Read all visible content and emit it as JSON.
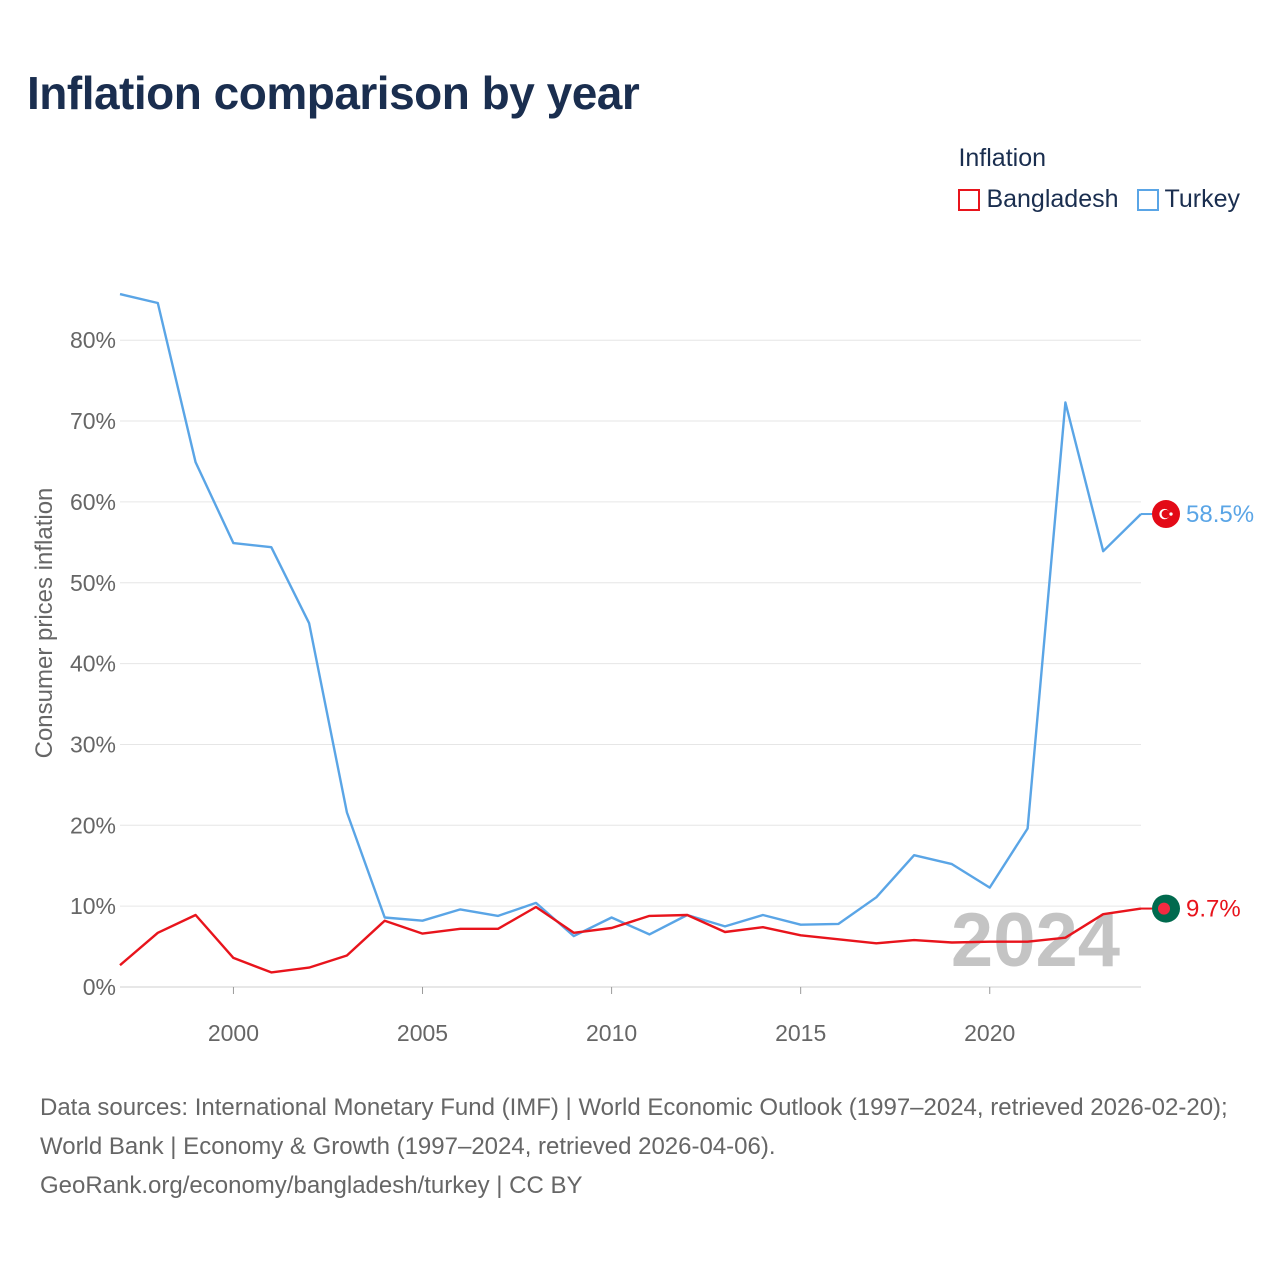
{
  "title": "Inflation comparison by year",
  "legend": {
    "title": "Inflation",
    "items": [
      {
        "label": "Bangladesh",
        "color": "#e8141c"
      },
      {
        "label": "Turkey",
        "color": "#5aa5e6"
      }
    ]
  },
  "chart_data": {
    "type": "line",
    "title": "Inflation comparison by year",
    "xlabel": "",
    "ylabel": "Consumer prices inflation",
    "xlim": [
      1997,
      2024
    ],
    "ylim": [
      0,
      85
    ],
    "x_ticks": [
      2000,
      2005,
      2010,
      2015,
      2020
    ],
    "y_ticks": [
      0,
      10,
      20,
      30,
      40,
      50,
      60,
      70,
      80
    ],
    "y_tick_suffix": "%",
    "grid": true,
    "x": [
      1997,
      1998,
      1999,
      2000,
      2001,
      2002,
      2003,
      2004,
      2005,
      2006,
      2007,
      2008,
      2009,
      2010,
      2011,
      2012,
      2013,
      2014,
      2015,
      2016,
      2017,
      2018,
      2019,
      2020,
      2021,
      2022,
      2023,
      2024
    ],
    "series": [
      {
        "name": "Turkey",
        "color": "#5aa5e6",
        "values": [
          85.7,
          84.6,
          64.9,
          54.9,
          54.4,
          45.0,
          21.6,
          8.6,
          8.2,
          9.6,
          8.8,
          10.4,
          6.3,
          8.6,
          6.5,
          8.9,
          7.5,
          8.9,
          7.7,
          7.8,
          11.1,
          16.3,
          15.2,
          12.3,
          19.6,
          72.3,
          53.9,
          58.5
        ],
        "end_label": "58.5%",
        "flag": "turkey"
      },
      {
        "name": "Bangladesh",
        "color": "#e8141c",
        "values": [
          2.7,
          6.7,
          8.9,
          3.6,
          1.8,
          2.4,
          3.9,
          8.2,
          6.6,
          7.2,
          7.2,
          9.9,
          6.7,
          7.3,
          8.8,
          8.9,
          6.8,
          7.4,
          6.4,
          5.9,
          5.4,
          5.8,
          5.5,
          5.6,
          5.6,
          6.1,
          9.0,
          9.7
        ],
        "end_label": "9.7%",
        "flag": "bangladesh"
      }
    ],
    "year_watermark": "2024"
  },
  "footer": {
    "line1": "Data sources: International Monetary Fund (IMF) | World Economic Outlook (1997–2024, retrieved 2026-02-20); World Bank | Economy & Growth (1997–2024, retrieved 2026-04-06).",
    "line2": "GeoRank.org/economy/bangladesh/turkey | CC BY"
  }
}
